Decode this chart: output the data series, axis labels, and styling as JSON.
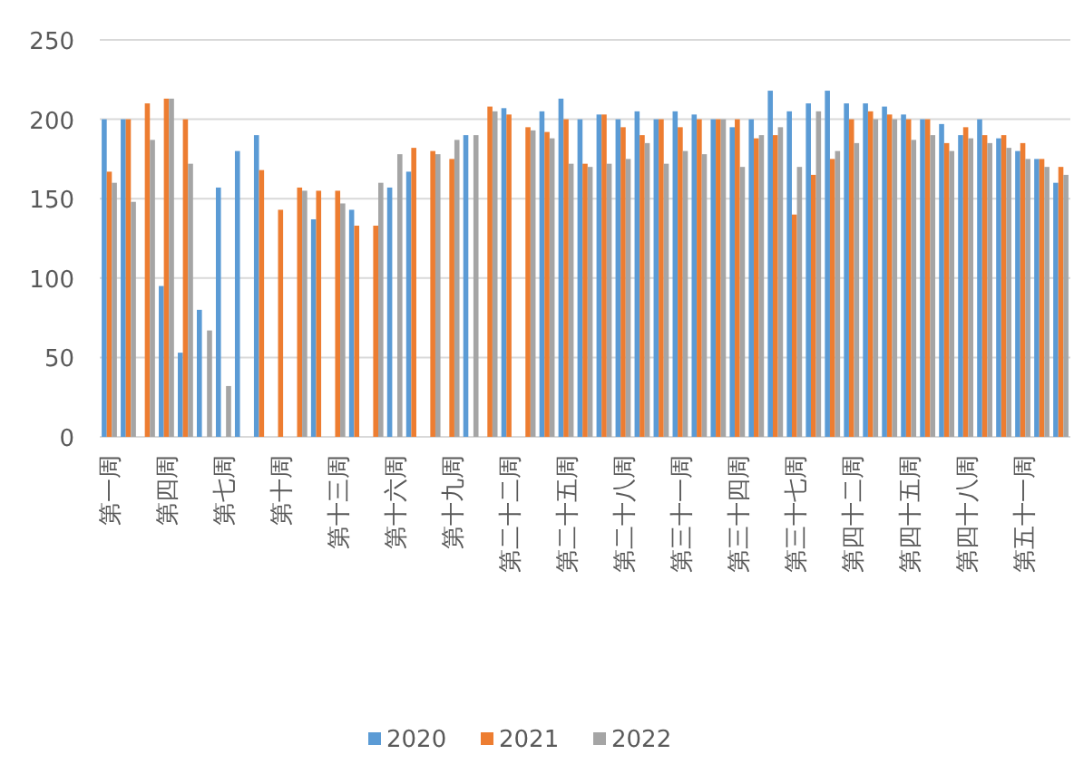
{
  "chart_data": {
    "type": "bar",
    "categories": [
      "第一周",
      null,
      null,
      "第四周",
      null,
      null,
      "第七周",
      null,
      null,
      "第十周",
      null,
      null,
      "第十三周",
      null,
      null,
      "第十六周",
      null,
      null,
      "第十九周",
      null,
      null,
      "第二十二周",
      null,
      null,
      "第二十五周",
      null,
      null,
      "第二十八周",
      null,
      null,
      "第三十一周",
      null,
      null,
      "第三十四周",
      null,
      null,
      "第三十七周",
      null,
      null,
      "第四十二周",
      null,
      null,
      "第四十五周",
      null,
      null,
      "第四十八周",
      null,
      null,
      "第五十一周",
      null,
      null
    ],
    "series": [
      {
        "name": "2020",
        "color": "#5b9bd5",
        "values": [
          200,
          200,
          null,
          95,
          53,
          80,
          157,
          180,
          190,
          null,
          null,
          137,
          null,
          143,
          null,
          157,
          167,
          null,
          null,
          190,
          null,
          207,
          null,
          205,
          213,
          200,
          203,
          200,
          205,
          200,
          205,
          203,
          200,
          195,
          200,
          218,
          205,
          210,
          218,
          210,
          210,
          208,
          203,
          200,
          197,
          190,
          200,
          188,
          180,
          175,
          160
        ]
      },
      {
        "name": "2021",
        "color": "#ed7d31",
        "values": [
          167,
          200,
          210,
          213,
          200,
          null,
          null,
          null,
          168,
          143,
          157,
          155,
          155,
          133,
          133,
          null,
          182,
          180,
          175,
          null,
          208,
          203,
          195,
          192,
          200,
          172,
          203,
          195,
          190,
          200,
          195,
          200,
          200,
          200,
          188,
          190,
          140,
          165,
          175,
          200,
          205,
          203,
          200,
          200,
          185,
          195,
          190,
          190,
          185,
          175,
          170
        ]
      },
      {
        "name": "2022",
        "color": "#a5a5a5",
        "values": [
          160,
          148,
          187,
          213,
          172,
          67,
          32,
          null,
          null,
          null,
          155,
          null,
          147,
          null,
          160,
          178,
          null,
          178,
          187,
          190,
          205,
          null,
          193,
          188,
          172,
          170,
          172,
          175,
          185,
          172,
          180,
          178,
          200,
          170,
          190,
          195,
          170,
          205,
          180,
          185,
          200,
          200,
          187,
          190,
          180,
          188,
          185,
          182,
          175,
          170,
          165
        ]
      }
    ],
    "ylim": [
      0,
      250
    ],
    "yticks": [
      0,
      50,
      100,
      150,
      200,
      250
    ],
    "grid": "y",
    "legend": "bottom"
  }
}
